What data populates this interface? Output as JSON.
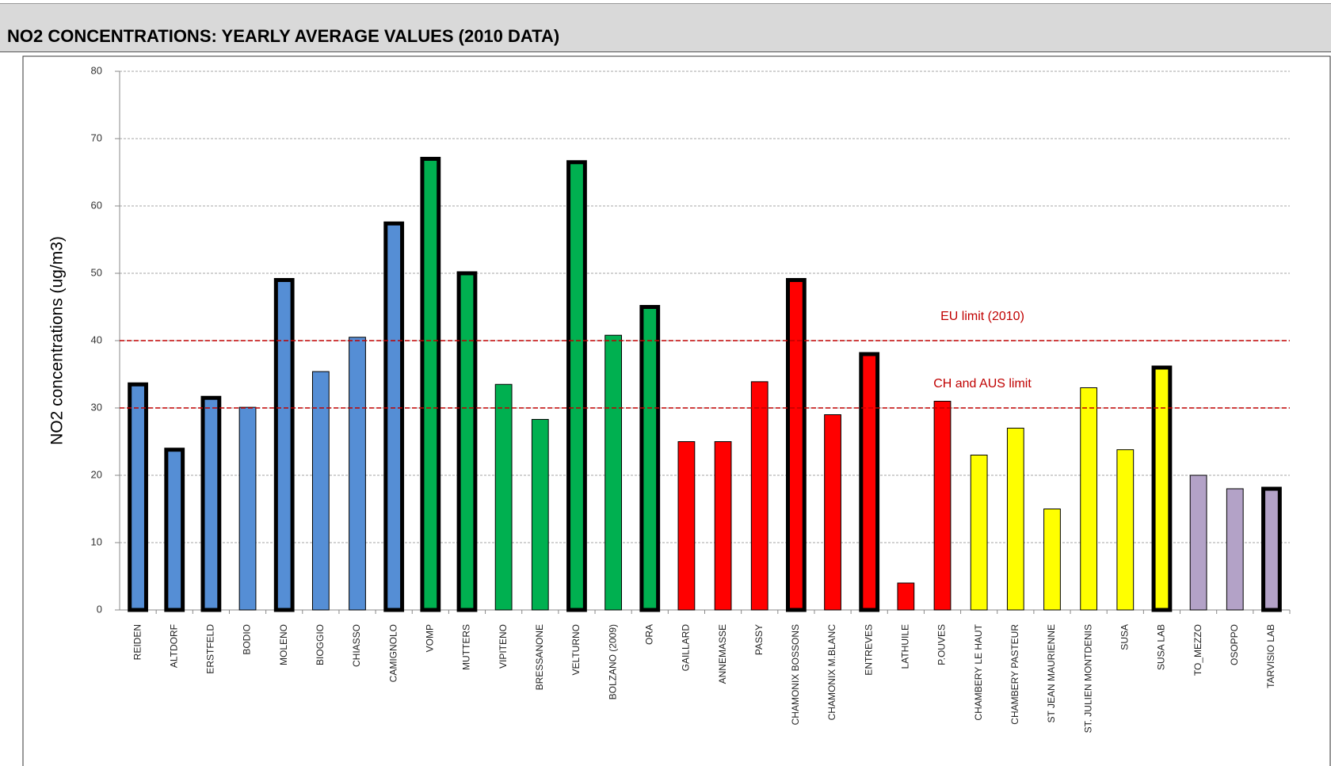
{
  "header": {
    "title": "NO2 CONCENTRATIONS: YEARLY AVERAGE VALUES (2010 DATA)"
  },
  "chart_data": {
    "type": "bar",
    "y_label": "NO2 concentrations (ug/m3)",
    "categories": [
      "REIDEN",
      "ALTDORF",
      "ERSTFELD",
      "BODIO",
      "MOLENO",
      "BIOGGIO",
      "CHIASSO",
      "CAMIGNOLO",
      "VOMP",
      "MUTTERS",
      "VIPITENO",
      "BRESSANONE",
      "VELTURNO",
      "BOLZANO (2009)",
      "ORA",
      "GAILLARD",
      "ANNEMASSE",
      "PASSY",
      "CHAMONIX BOSSONS",
      "CHAMONIX M.BLANC",
      "ENTREVES",
      "LATHUILE",
      "P.OUVES",
      "CHAMBERY LE HAUT",
      "CHAMBERY PASTEUR",
      "ST JEAN MAURIENNE",
      "ST. JULIEN MONTDENIS",
      "SUSA",
      "SUSA LAB",
      "TO_MEZZO",
      "OSOPPO",
      "TARVISIO LAB"
    ],
    "values": [
      33.5,
      23.8,
      31.5,
      30.1,
      49,
      35.4,
      40.5,
      57.4,
      67,
      50,
      33.5,
      28.3,
      66.5,
      40.8,
      45,
      25,
      25,
      33.9,
      49,
      29,
      38,
      4,
      31,
      23,
      27,
      15,
      33,
      23.8,
      36,
      20,
      18,
      18
    ],
    "colors": [
      "#558ed5",
      "#558ed5",
      "#558ed5",
      "#558ed5",
      "#558ed5",
      "#558ed5",
      "#558ed5",
      "#558ed5",
      "#00b050",
      "#00b050",
      "#00b050",
      "#00b050",
      "#00b050",
      "#00b050",
      "#00b050",
      "#ff0000",
      "#ff0000",
      "#ff0000",
      "#ff0000",
      "#ff0000",
      "#ff0000",
      "#ff0000",
      "#ff0000",
      "#ffff00",
      "#ffff00",
      "#ffff00",
      "#ffff00",
      "#ffff00",
      "#ffff00",
      "#b3a2c7",
      "#b3a2c7",
      "#b3a2c7"
    ],
    "bold_outline": [
      true,
      true,
      true,
      false,
      true,
      false,
      false,
      true,
      true,
      true,
      false,
      false,
      true,
      false,
      true,
      false,
      false,
      false,
      true,
      false,
      true,
      false,
      false,
      false,
      false,
      false,
      false,
      false,
      true,
      false,
      false,
      true
    ],
    "ylim": [
      0,
      80
    ],
    "yticks": [
      0,
      10,
      20,
      30,
      40,
      50,
      60,
      70,
      80
    ],
    "grid": true,
    "reference_lines": [
      {
        "value": 40,
        "label": "EU limit (2010)"
      },
      {
        "value": 30,
        "label": "CH and AUS limit"
      }
    ]
  }
}
